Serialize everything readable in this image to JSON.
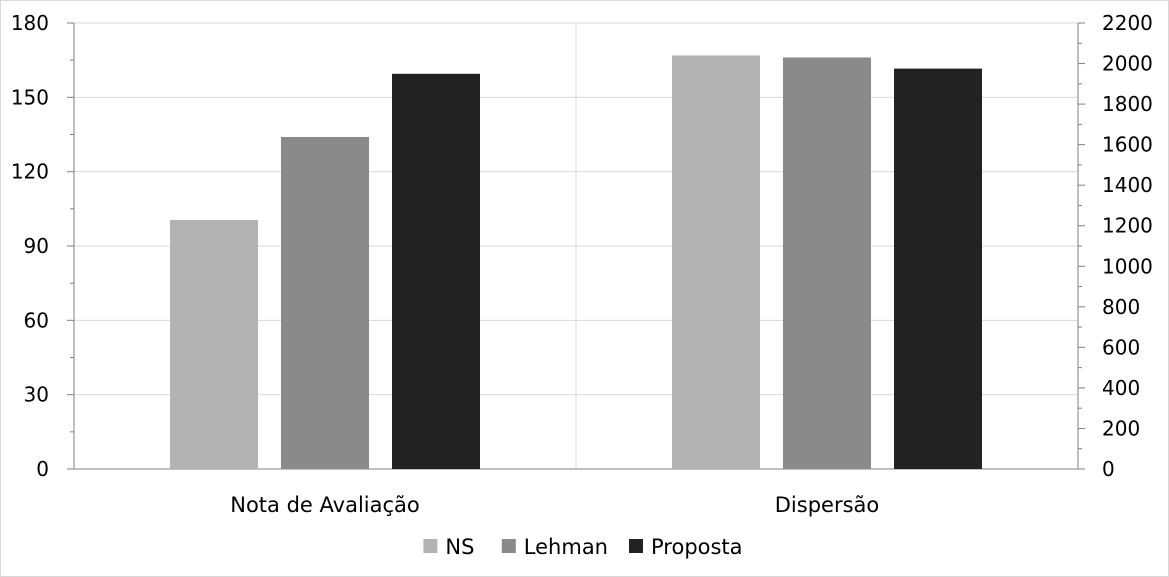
{
  "chart_data": {
    "type": "bar",
    "title": "",
    "categories": [
      "Nota de Avaliação",
      "Dispersão"
    ],
    "category_axis": [
      "left",
      "right"
    ],
    "series": [
      {
        "name": "NS",
        "color": "#b3b3b3",
        "values": [
          100.5,
          2040
        ]
      },
      {
        "name": "Lehman",
        "color": "#8a8a8a",
        "values": [
          134,
          2030
        ]
      },
      {
        "name": "Proposta",
        "color": "#222222",
        "values": [
          159.5,
          1975
        ]
      }
    ],
    "y_left": {
      "ylim": [
        0,
        180
      ],
      "ticks": [
        "0",
        "30",
        "60",
        "90",
        "120",
        "150",
        "180"
      ]
    },
    "y_right": {
      "ylim": [
        0,
        2200
      ],
      "ticks": [
        "0",
        "200",
        "400",
        "600",
        "800",
        "1000",
        "1200",
        "1400",
        "1600",
        "1800",
        "2000",
        "2200"
      ]
    },
    "grid": true,
    "legend": "bottom"
  }
}
